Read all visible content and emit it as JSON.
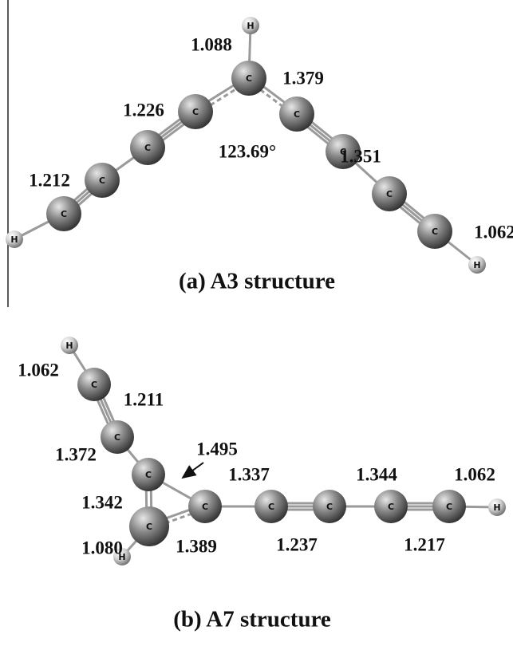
{
  "panels": [
    {
      "caption": "(a) A3 structure",
      "atoms": [
        "H",
        "C",
        "C",
        "C",
        "C",
        "C",
        "H",
        "C",
        "C",
        "C",
        "C",
        "H"
      ],
      "labels": [
        "1.088",
        "1.379",
        "1.226",
        "123.69°",
        "1.351",
        "1.212",
        "1.062"
      ]
    },
    {
      "caption": "(b) A7 structure",
      "atoms": [
        "H",
        "C",
        "C",
        "C",
        "C",
        "H",
        "C",
        "C",
        "C",
        "C",
        "C",
        "H"
      ],
      "labels": [
        "1.062",
        "1.211",
        "1.495",
        "1.372",
        "1.342",
        "1.337",
        "1.344",
        "1.062",
        "1.080",
        "1.389",
        "1.237",
        "1.217"
      ]
    }
  ]
}
